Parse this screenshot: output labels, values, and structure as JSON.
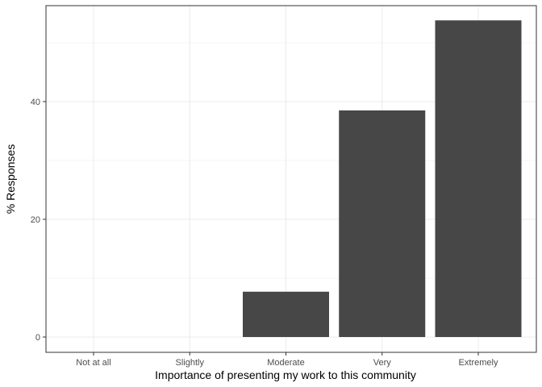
{
  "chart_data": {
    "type": "bar",
    "categories": [
      "Not at all",
      "Slightly",
      "Moderate",
      "Very",
      "Extremely"
    ],
    "values": [
      0,
      0,
      7.7,
      38.5,
      53.8
    ],
    "xlabel": "Importance of presenting my work to this community",
    "ylabel": "% Responses",
    "ylim": [
      0,
      56.5
    ],
    "yticks": [
      0,
      20,
      40
    ],
    "grid": true,
    "bar_color": "#474747",
    "grid_major_color": "#ebebeb",
    "grid_minor_color": "#f4f4f4",
    "panel_border_color": "#333333",
    "theme": "bw"
  }
}
